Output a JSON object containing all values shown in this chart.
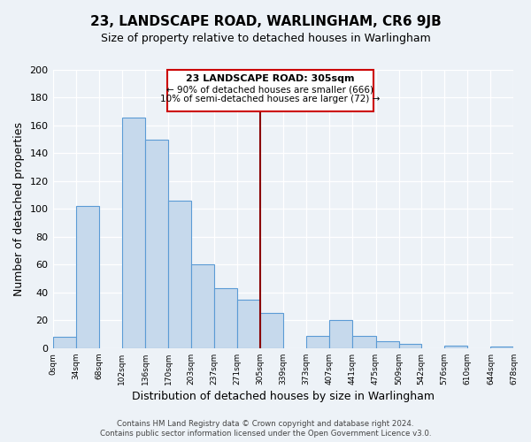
{
  "title": "23, LANDSCAPE ROAD, WARLINGHAM, CR6 9JB",
  "subtitle": "Size of property relative to detached houses in Warlingham",
  "xlabel": "Distribution of detached houses by size in Warlingham",
  "ylabel": "Number of detached properties",
  "bin_edges": [
    0,
    34,
    68,
    102,
    136,
    170,
    203,
    237,
    271,
    305,
    339,
    373,
    407,
    441,
    475,
    509,
    542,
    576,
    610,
    644,
    678
  ],
  "bar_heights": [
    8,
    102,
    0,
    166,
    150,
    106,
    60,
    43,
    35,
    25,
    0,
    9,
    20,
    9,
    5,
    3,
    0,
    2,
    0,
    1
  ],
  "bar_color": "#c6d9ec",
  "bar_edge_color": "#5b9bd5",
  "vline_x": 305,
  "vline_color": "#8b0000",
  "annotation_title": "23 LANDSCAPE ROAD: 305sqm",
  "annotation_line1": "← 90% of detached houses are smaller (666)",
  "annotation_line2": "10% of semi-detached houses are larger (72) →",
  "annotation_box_color": "#ffffff",
  "annotation_box_edge": "#cc0000",
  "ylim": [
    0,
    200
  ],
  "yticks": [
    0,
    20,
    40,
    60,
    80,
    100,
    120,
    140,
    160,
    180,
    200
  ],
  "footnote1": "Contains HM Land Registry data © Crown copyright and database right 2024.",
  "footnote2": "Contains public sector information licensed under the Open Government Licence v3.0.",
  "tick_labels": [
    "0sqm",
    "34sqm",
    "68sqm",
    "102sqm",
    "136sqm",
    "170sqm",
    "203sqm",
    "237sqm",
    "271sqm",
    "305sqm",
    "339sqm",
    "373sqm",
    "407sqm",
    "441sqm",
    "475sqm",
    "509sqm",
    "542sqm",
    "576sqm",
    "610sqm",
    "644sqm",
    "678sqm"
  ],
  "bg_color": "#edf2f7",
  "grid_color": "#ffffff",
  "title_fontsize": 11,
  "subtitle_fontsize": 9
}
